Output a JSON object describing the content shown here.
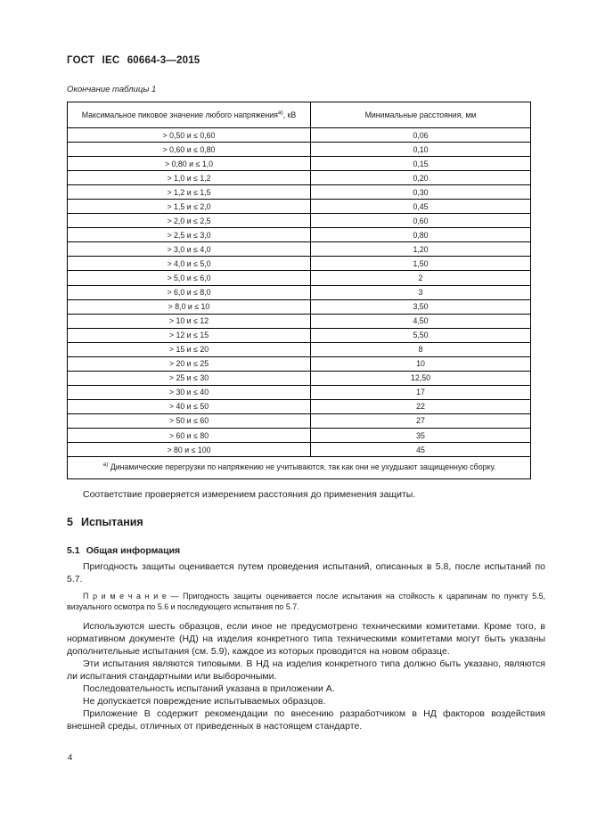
{
  "page": {
    "header": "ГОСТ IEC 60664-3—2015",
    "table_caption": "Окончание таблицы 1",
    "page_number": "4"
  },
  "table": {
    "col1_header": "Максимальное пиковое значение любого напряжения",
    "col1_header_sup": "а)",
    "col1_header_suffix": ", кВ",
    "col2_header": "Минимальные расстояния, мм",
    "rows": [
      {
        "range": "> 0,50 и ≤ 0,60",
        "distance": "0,06"
      },
      {
        "range": "> 0,60 и ≤ 0,80",
        "distance": "0,10"
      },
      {
        "range": "> 0,80 и ≤ 1,0",
        "distance": "0,15"
      },
      {
        "range": "> 1,0 и ≤ 1,2",
        "distance": "0,20"
      },
      {
        "range": "> 1,2 и ≤ 1,5",
        "distance": "0,30"
      },
      {
        "range": "> 1,5 и ≤ 2,0",
        "distance": "0,45"
      },
      {
        "range": "> 2,0 и ≤ 2,5",
        "distance": "0,60"
      },
      {
        "range": "> 2,5 и ≤ 3,0",
        "distance": "0,80"
      },
      {
        "range": "> 3,0 и ≤ 4,0",
        "distance": "1,20"
      },
      {
        "range": "> 4,0 и ≤ 5,0",
        "distance": "1,50"
      },
      {
        "range": "> 5,0 и ≤ 6,0",
        "distance": "2"
      },
      {
        "range": "> 6,0 и ≤ 8,0",
        "distance": "3"
      },
      {
        "range": "> 8,0 и ≤ 10",
        "distance": "3,50"
      },
      {
        "range": "> 10 и ≤ 12",
        "distance": "4,50"
      },
      {
        "range": "> 12 и ≤ 15",
        "distance": "5,50"
      },
      {
        "range": "> 15 и ≤ 20",
        "distance": "8"
      },
      {
        "range": "> 20 и ≤ 25",
        "distance": "10"
      },
      {
        "range": "> 25 и ≤ 30",
        "distance": "12,50"
      },
      {
        "range": "> 30 и ≤ 40",
        "distance": "17"
      },
      {
        "range": "> 40 и ≤ 50",
        "distance": "22"
      },
      {
        "range": "> 50 и ≤ 60",
        "distance": "27"
      },
      {
        "range": "> 60 и ≤ 80",
        "distance": "35"
      },
      {
        "range": "> 80 и ≤ 100",
        "distance": "45"
      }
    ],
    "footnote_sup": "а)",
    "footnote": "Динамические перегрузки по напряжению не учитываются, так как они не ухудшают защищенную сборку."
  },
  "content": {
    "compliance_para": "Соответствие проверяется измерением расстояния до применения защиты.",
    "section_number": "5",
    "section_title": "Испытания",
    "subsection_number": "5.1",
    "subsection_title": "Общая информация",
    "para1": "Пригодность защиты оценивается путем проведения испытаний, описанных в 5.8, после испытаний по 5.7.",
    "note_label": "П р и м е ч а н и е",
    "note_dash": "—",
    "note_text": "Пригодность защиты оценивается после испытания на стойкость к царапинам по пункту 5.5, визуального осмотра по 5.6 и последующего испытания по 5.7.",
    "para2": "Используются шесть образцов, если иное не предусмотрено техническими комитетами. Кроме того, в нормативном документе (НД) на изделия конкретного типа техническими комитетами могут быть указаны дополнительные испытания (см. 5.9), каждое из которых проводится на новом образце.",
    "para3": "Эти испытания являются типовыми. В НД на изделия конкретного типа должно быть указано, являются ли испытания стандартными или выборочными.",
    "para4": "Последовательность испытаний указана в приложении А.",
    "para5": "Не допускается повреждение испытываемых образцов.",
    "para6": "Приложение В содержит рекомендации по внесению разработчиком в НД факторов воздействия внешней среды, отличных от приведенных в настоящем стандарте."
  }
}
